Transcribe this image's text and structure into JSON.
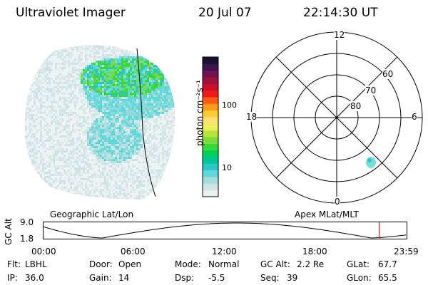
{
  "header": {
    "instrument": "Ultraviolet Imager",
    "date": "20 Jul 07",
    "time": "22:14:30 UT"
  },
  "colorbar": {
    "label": "photon cm⁻²s⁻¹",
    "ticks": [
      {
        "label": "100",
        "value": 100
      },
      {
        "label": "10",
        "value": 10
      }
    ],
    "scale": "log",
    "colors": [
      "#e8f0f0",
      "#cfe4e4",
      "#a8dcdc",
      "#5ed8d8",
      "#2cc6c6",
      "#00c69a",
      "#00d05a",
      "#38d838",
      "#7adc3a",
      "#b8e438",
      "#eef05a",
      "#ffe070",
      "#ffcc33",
      "#ff9a1a",
      "#ff5a12",
      "#ee1a1a",
      "#c8102a",
      "#a0103c",
      "#701450",
      "#3c1450",
      "#1a1030"
    ]
  },
  "polar_plot": {
    "clock_labels": [
      "12",
      "18",
      "6",
      "0"
    ],
    "lat_labels": [
      "60",
      "70",
      "80"
    ]
  },
  "left_panel_label": "Geographic Lat/Lon",
  "right_panel_label": "Apex MLat/MLT",
  "altitude_plot": {
    "ylabel": "GC Alt",
    "yticks": [
      "9.0",
      "1.8"
    ],
    "xticks": [
      "00:00",
      "06:00",
      "12:00",
      "18:00",
      "23:59"
    ],
    "marker_time": "22:14:30",
    "marker_color": "#e01010"
  },
  "info": {
    "flt_label": "Flt:",
    "flt_value": "LBHL",
    "ip_label": "IP:",
    "ip_value": "36.0",
    "door_label": "Door:",
    "door_value": "Open",
    "gain_label": "Gain:",
    "gain_value": "14",
    "mode_label": "Mode:",
    "mode_value": "Normal",
    "dsp_label": "Dsp:",
    "dsp_value": "-5.5",
    "gcalt_label": "GC Alt:",
    "gcalt_value": "2.2 Re",
    "seq_label": "Seq:",
    "seq_value": "39",
    "glat_label": "GLat:",
    "glat_value": "67.7",
    "glon_label": "GLon:",
    "glon_value": "65.5"
  }
}
